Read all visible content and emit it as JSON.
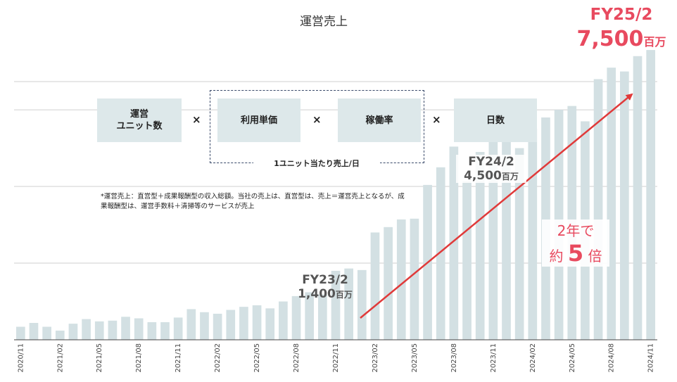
{
  "chart_data": {
    "type": "bar",
    "title": "運営売上",
    "x_tick_labels": [
      "2020/11",
      "2021/02",
      "2021/05",
      "2021/08",
      "2021/11",
      "2022/02",
      "2022/05",
      "2022/08",
      "2022/11",
      "2023/02",
      "2023/05",
      "2023/08",
      "2023/11",
      "2024/02",
      "2024/05",
      "2024/08",
      "2024/11"
    ],
    "categories": [
      "2020/11",
      "2020/12",
      "2021/01",
      "2021/02",
      "2021/03",
      "2021/04",
      "2021/05",
      "2021/06",
      "2021/07",
      "2021/08",
      "2021/09",
      "2021/10",
      "2021/11",
      "2021/12",
      "2022/01",
      "2022/02",
      "2022/03",
      "2022/04",
      "2022/05",
      "2022/06",
      "2022/07",
      "2022/08",
      "2022/09",
      "2022/10",
      "2022/11",
      "2022/12",
      "2023/01",
      "2023/02",
      "2023/03",
      "2023/04",
      "2023/05",
      "2023/06",
      "2023/07",
      "2023/08",
      "2023/09",
      "2023/10",
      "2023/11",
      "2023/12",
      "2024/01",
      "2024/02",
      "2024/03",
      "2024/04",
      "2024/05",
      "2024/06",
      "2024/07",
      "2024/08",
      "2024/09",
      "2024/10",
      "2024/11"
    ],
    "values": [
      0.17,
      0.22,
      0.17,
      0.12,
      0.21,
      0.27,
      0.24,
      0.25,
      0.3,
      0.28,
      0.23,
      0.23,
      0.29,
      0.4,
      0.36,
      0.34,
      0.39,
      0.43,
      0.45,
      0.41,
      0.5,
      0.57,
      0.62,
      0.59,
      0.9,
      0.93,
      0.91,
      1.4,
      1.47,
      1.57,
      1.58,
      2.02,
      2.25,
      2.52,
      2.07,
      2.45,
      2.7,
      2.8,
      2.5,
      2.75,
      2.9,
      3.0,
      3.05,
      2.85,
      3.4,
      3.55,
      3.5,
      3.7,
      3.78
    ],
    "ylim": [
      0,
      3.9
    ],
    "grid": "horizontal",
    "bar_color": "#d3e0e3"
  },
  "formula": {
    "box1": "運営\nユニット数",
    "box2": "利用単価",
    "box3": "稼働率",
    "box4": "日数",
    "times": "×",
    "group_label": "1ユニット当たり売上/日"
  },
  "note": "*運営売上：直営型＋成果報酬型の収入総額。当社の売上は、直営型は、売上＝運営売上となるが、成果報酬型は、運営手数料＋清掃等のサービスが売上",
  "annotations": {
    "fy23_label": "FY23/2",
    "fy23_value": "1,400",
    "fy23_unit": "百万",
    "fy24_label": "FY24/2",
    "fy24_value": "4,500",
    "fy24_unit": "百万",
    "fy25_label": "FY25/2",
    "fy25_value": "7,500",
    "fy25_unit": "百万",
    "mult_line1": "2年で",
    "mult_pre": "約",
    "mult_num": "5",
    "mult_post": "倍"
  },
  "colors": {
    "accent": "#e84a5f",
    "arrow": "#e03a3a",
    "text": "#333333"
  }
}
